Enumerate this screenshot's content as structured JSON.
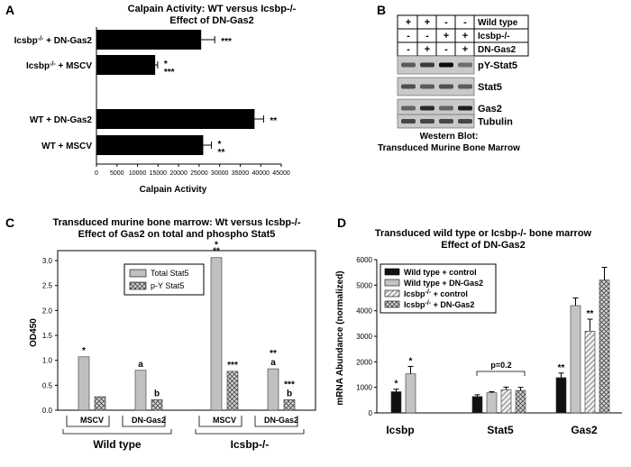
{
  "chart_data": [
    {
      "panel": "A",
      "type": "bar",
      "orientation": "horizontal",
      "title": "Calpain Activity: WT versus Icsbp-/-",
      "subtitle": "Effect of DN-Gas2",
      "xlabel": "Calpain Activity",
      "xlim": [
        0,
        45000
      ],
      "xticks": [
        "0",
        "5000",
        "10000",
        "15000",
        "20000",
        "25000",
        "30000",
        "35000",
        "40000",
        "45000"
      ],
      "bars": [
        {
          "label": "Icsbp-/- + DN-Gas2",
          "value": 25500,
          "error": 3300,
          "sig": [
            "***"
          ]
        },
        {
          "label": "Icsbp-/- + MSCV",
          "value": 14300,
          "error": 600,
          "sig": [
            "*",
            "***"
          ]
        },
        {
          "label": "WT + DN-Gas2",
          "value": 38500,
          "error": 2200,
          "sig": [
            "**"
          ]
        },
        {
          "label": "WT + MSCV",
          "value": 26000,
          "error": 2000,
          "sig": [
            "*",
            "**"
          ]
        }
      ]
    },
    {
      "panel": "B",
      "type": "table",
      "row_labels": [
        "Wild type",
        "Icsbp-/-",
        "DN-Gas2"
      ],
      "lanes": [
        [
          "+",
          "-",
          "-"
        ],
        [
          "+",
          "-",
          "+"
        ],
        [
          "-",
          "+",
          "-"
        ],
        [
          "-",
          "+",
          "+"
        ]
      ],
      "blots": [
        "pY-Stat5",
        "Stat5",
        "Gas2",
        "Tubulin"
      ],
      "caption_line1": "Western Blot:",
      "caption_line2": "Transduced Murine Bone Marrow"
    },
    {
      "panel": "C",
      "type": "bar",
      "title": "Transduced murine bone marrow: Wt versus Icsbp-/-",
      "subtitle": "Effect of Gas2 on total and phospho Stat5",
      "ylabel": "OD450",
      "ylim": [
        0,
        3.2
      ],
      "yticks": [
        "0.0",
        "0.5",
        "1.0",
        "1.5",
        "2.0",
        "2.5",
        "3.0"
      ],
      "legend": [
        "Total Stat5",
        "p-Y Stat5"
      ],
      "groups": [
        {
          "category": "MSCV",
          "genotype": "Wild type",
          "total": 1.07,
          "pY": 0.27,
          "total_sig": "*",
          "pY_sig": ""
        },
        {
          "category": "DN-Gas2",
          "genotype": "Wild type",
          "total": 0.8,
          "pY": 0.21,
          "total_sig": "a",
          "pY_sig": "b"
        },
        {
          "category": "MSCV",
          "genotype": "Icsbp-/-",
          "total": 3.06,
          "pY": 0.78,
          "total_sig": "**",
          "pY_sig": "***"
        },
        {
          "category": "DN-Gas2",
          "genotype": "Icsbp-/-",
          "total": 0.83,
          "pY": 0.21,
          "total_sig": "a",
          "pY_sig": "b"
        }
      ],
      "total_sig_extra": [
        "",
        "",
        "",
        "**"
      ],
      "pY_sig_extra": [
        "",
        "",
        "",
        "***"
      ],
      "genotypes": [
        "Wild type",
        "Icsbp-/-"
      ]
    },
    {
      "panel": "D",
      "type": "bar",
      "title": "Transduced wild type or Icsbp-/- bone marrow",
      "subtitle": "Effect of DN-Gas2",
      "ylabel": "mRNA Abundance (normalized)",
      "ylim": [
        0,
        6000
      ],
      "yticks": [
        "0",
        "1000",
        "2000",
        "3000",
        "4000",
        "5000",
        "6000"
      ],
      "categories": [
        "Icsbp",
        "Stat5",
        "Gas2"
      ],
      "series": [
        {
          "name": "Wild type + control",
          "values": [
            830,
            640,
            1380
          ],
          "errors": [
            100,
            70,
            180
          ],
          "sig": [
            "*",
            "",
            "**"
          ]
        },
        {
          "name": "Wild type + DN-Gas2",
          "values": [
            1530,
            790,
            4200
          ],
          "errors": [
            290,
            40,
            300
          ],
          "sig": [
            "*",
            "",
            ""
          ]
        },
        {
          "name": "Icsbp-/- + control",
          "values": [
            null,
            910,
            3200
          ],
          "errors": [
            0,
            100,
            470
          ],
          "sig": [
            "",
            "",
            "**"
          ]
        },
        {
          "name": "Icsbp-/- + DN-Gas2",
          "values": [
            null,
            880,
            5200
          ],
          "errors": [
            0,
            120,
            500
          ],
          "sig": [
            "",
            "",
            ""
          ]
        }
      ],
      "annotation": "p=0.2"
    }
  ],
  "panel_letters": [
    "A",
    "B",
    "C",
    "D"
  ]
}
